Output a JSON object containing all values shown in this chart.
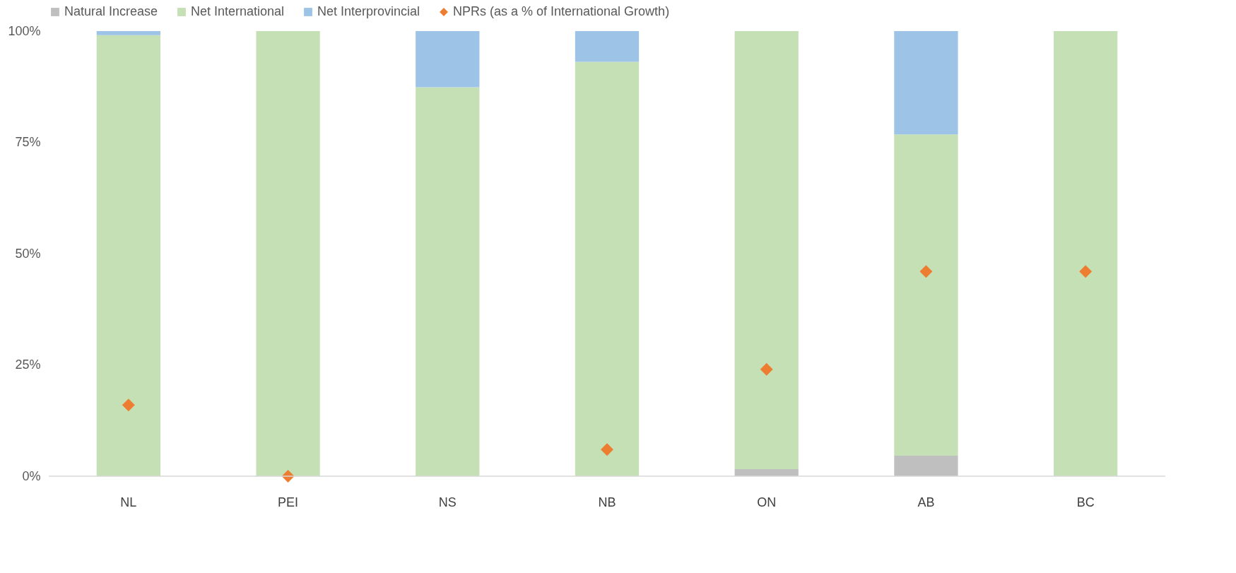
{
  "chart_data": {
    "type": "bar",
    "stacked": true,
    "legend": "top",
    "categories": [
      "NL",
      "PEI",
      "NS",
      "NB",
      "ON",
      "AB",
      "BC"
    ],
    "series": [
      {
        "name": "Natural Increase",
        "color": "#bfbfbf",
        "values": [
          0,
          0,
          0,
          0,
          1.6,
          4.6,
          0
        ]
      },
      {
        "name": "Net International",
        "color": "#c5e0b4",
        "values": [
          99.1,
          100,
          87.4,
          93.1,
          98.4,
          72.2,
          100
        ]
      },
      {
        "name": "Net Interprovincial",
        "color": "#9dc3e6",
        "values": [
          0.9,
          0,
          12.6,
          6.9,
          0,
          23.2,
          0
        ]
      },
      {
        "name": "NPRs (as a % of International Growth)",
        "color": "#ed7d31",
        "type": "scatter",
        "marker": "diamond",
        "x": [
          "NL",
          "PEI",
          "NS",
          "NB",
          "ON",
          "AB",
          "BC"
        ],
        "values": [
          16,
          0,
          null,
          6,
          24,
          46,
          46
        ]
      }
    ],
    "ylim": [
      0,
      100
    ],
    "yticks": [
      {
        "value": 0,
        "label": "0%"
      },
      {
        "value": 25,
        "label": "25%"
      },
      {
        "value": 50,
        "label": "50%"
      },
      {
        "value": 75,
        "label": "75%"
      },
      {
        "value": 100,
        "label": "100%"
      }
    ]
  }
}
